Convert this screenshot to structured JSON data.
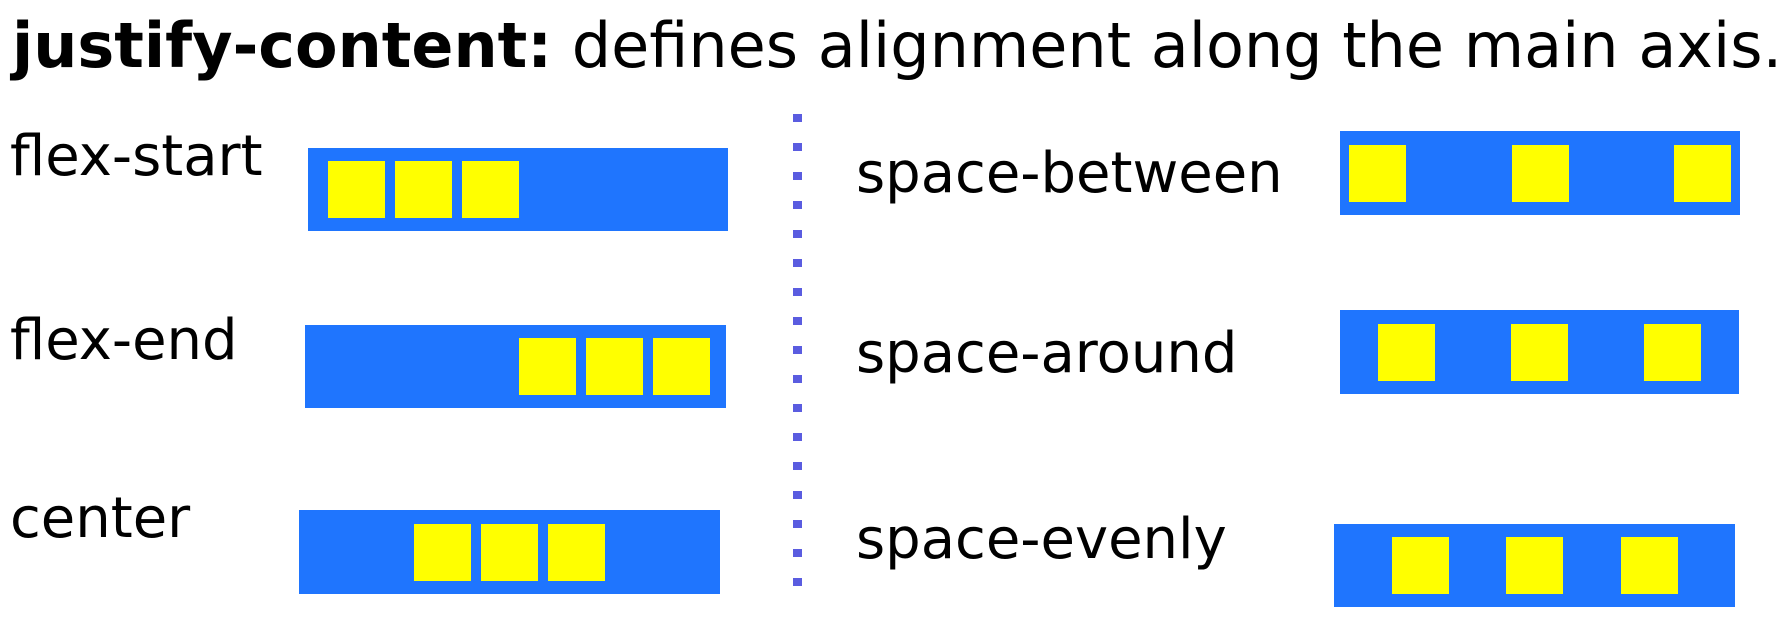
{
  "title": {
    "keyword": "justify-content:",
    "description": "defines alignment along the main axis."
  },
  "colors": {
    "container": "#1f75fe",
    "item": "#ffff00",
    "divider": "#5a5ce0"
  },
  "examples": [
    {
      "label": "flex-start",
      "justify": "flex-start",
      "items": 3
    },
    {
      "label": "flex-end",
      "justify": "flex-end",
      "items": 3
    },
    {
      "label": "center",
      "justify": "center",
      "items": 3
    },
    {
      "label": "space-between",
      "justify": "space-between",
      "items": 3
    },
    {
      "label": "space-around",
      "justify": "space-around",
      "items": 3
    },
    {
      "label": "space-evenly",
      "justify": "space-evenly",
      "items": 3
    }
  ]
}
